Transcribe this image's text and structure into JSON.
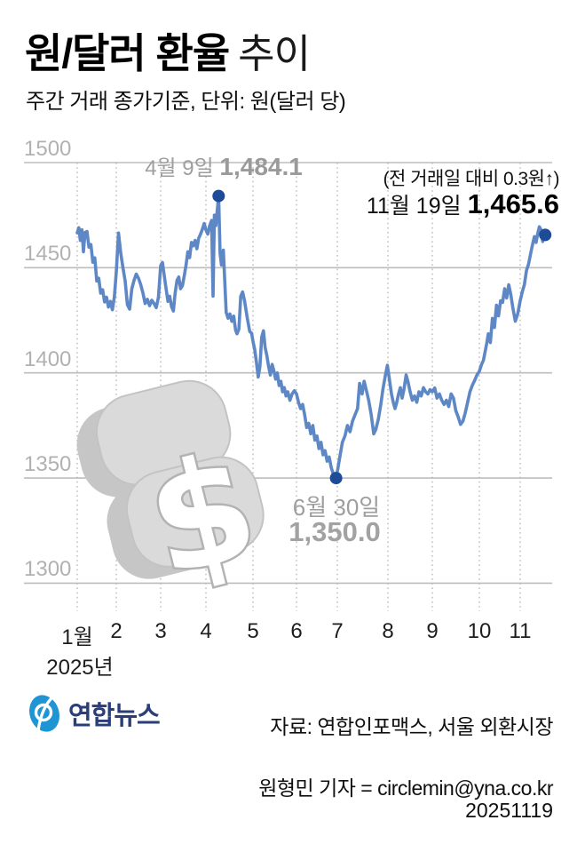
{
  "header": {
    "title_bold": "원/달러 환율",
    "title_light": "추이",
    "subtitle": "주간 거래 종가기준, 단위: 원(달러 당)"
  },
  "annotations": {
    "apr_label": "4월 9일 ",
    "apr_value": "1,484.1",
    "nov_note": "(전 거래일 대비 0.3원↑)",
    "nov_label": "11월 19일 ",
    "nov_value": "1,465.6",
    "jun_label": "6월 30일",
    "jun_value": "1,350.0"
  },
  "x_axis": {
    "month_labels": [
      "1월",
      "2",
      "3",
      "4",
      "5",
      "6",
      "7",
      "8",
      "9",
      "10",
      "11"
    ],
    "year_label": "2025년"
  },
  "y_axis": {
    "tick_labels": [
      "1500",
      "1450",
      "1400",
      "1350",
      "1300"
    ]
  },
  "footer": {
    "logo_text": "연합뉴스",
    "source": "자료: 연합인포맥스, 서울 외환시장",
    "byline": "원형민 기자 = circlemin@yna.co.kr",
    "date": "20251119"
  },
  "colors": {
    "line": "#5e87c6",
    "marker": "#1e4b97",
    "grid": "#bdbdbd",
    "month_grid": "#b5b5b5",
    "annotation_gray": "#9e9e9e",
    "text_black": "#111111",
    "axis_label_gray": "#b1b1b1",
    "logo_blue": "#2095d3",
    "logo_navy": "#2a3f77",
    "dollar_gray": "#dadada"
  },
  "chart_data": {
    "type": "line",
    "title": "원/달러 환율 추이",
    "subtitle": "주간 거래 종가기준, 단위: 원(달러 당)",
    "xlabel": "2025년 (월)",
    "ylabel": "원(달러 당)",
    "ylim": [
      1300,
      1500
    ],
    "y_ticks": [
      1500,
      1450,
      1400,
      1350,
      1300
    ],
    "x_tick_labels": [
      "1월",
      "2",
      "3",
      "4",
      "5",
      "6",
      "7",
      "8",
      "9",
      "10",
      "11"
    ],
    "grid": true,
    "legend_position": "none",
    "key_points": [
      {
        "date": "4월 9일",
        "month": 4.27,
        "value": 1484.1,
        "label": "1,484.1"
      },
      {
        "date": "6월 30일",
        "month": 6.97,
        "value": 1350.0,
        "label": "1,350.0"
      },
      {
        "date": "11월 19일",
        "month": 11.6,
        "value": 1465.6,
        "label": "1,465.6",
        "change_note": "(전 거래일 대비 0.3원↑)"
      }
    ],
    "series": [
      {
        "name": "원/달러 환율 (주간 거래 종가)",
        "points": [
          [
            1.0,
            1466.6
          ],
          [
            1.04,
            1469
          ],
          [
            1.08,
            1463
          ],
          [
            1.12,
            1468
          ],
          [
            1.16,
            1457.6
          ],
          [
            1.2,
            1466.8
          ],
          [
            1.25,
            1467.2
          ],
          [
            1.3,
            1459.8
          ],
          [
            1.35,
            1461
          ],
          [
            1.4,
            1452.6
          ],
          [
            1.45,
            1454.7
          ],
          [
            1.5,
            1443.7
          ],
          [
            1.55,
            1445
          ],
          [
            1.6,
            1437.9
          ],
          [
            1.65,
            1439.5
          ],
          [
            1.7,
            1433.7
          ],
          [
            1.75,
            1436
          ],
          [
            1.8,
            1431.3
          ],
          [
            1.85,
            1434
          ],
          [
            1.9,
            1430
          ],
          [
            1.95,
            1436
          ],
          [
            2.0,
            1448
          ],
          [
            2.05,
            1466.5
          ],
          [
            2.1,
            1457
          ],
          [
            2.15,
            1450
          ],
          [
            2.2,
            1443.7
          ],
          [
            2.25,
            1432.4
          ],
          [
            2.3,
            1430.3
          ],
          [
            2.35,
            1440
          ],
          [
            2.4,
            1444
          ],
          [
            2.45,
            1447
          ],
          [
            2.5,
            1445
          ],
          [
            2.55,
            1442
          ],
          [
            2.6,
            1438
          ],
          [
            2.65,
            1433
          ],
          [
            2.7,
            1435
          ],
          [
            2.75,
            1432
          ],
          [
            2.8,
            1434.5
          ],
          [
            2.85,
            1433
          ],
          [
            2.9,
            1431
          ],
          [
            2.95,
            1436
          ],
          [
            3.0,
            1451
          ],
          [
            3.04,
            1452.5
          ],
          [
            3.08,
            1446
          ],
          [
            3.12,
            1440
          ],
          [
            3.16,
            1434
          ],
          [
            3.2,
            1436.4
          ],
          [
            3.24,
            1431.5
          ],
          [
            3.28,
            1429.4
          ],
          [
            3.32,
            1438
          ],
          [
            3.36,
            1444
          ],
          [
            3.4,
            1445.6
          ],
          [
            3.44,
            1440
          ],
          [
            3.48,
            1441.5
          ],
          [
            3.52,
            1446
          ],
          [
            3.56,
            1451.3
          ],
          [
            3.6,
            1457.6
          ],
          [
            3.64,
            1454.8
          ],
          [
            3.68,
            1462
          ],
          [
            3.72,
            1460.4
          ],
          [
            3.76,
            1463
          ],
          [
            3.8,
            1459
          ],
          [
            3.84,
            1464
          ],
          [
            3.88,
            1466
          ],
          [
            3.92,
            1468.2
          ],
          [
            3.96,
            1471
          ],
          [
            4.0,
            1468
          ],
          [
            4.04,
            1466
          ],
          [
            4.08,
            1470
          ],
          [
            4.12,
            1472.5
          ],
          [
            4.15,
            1436.5
          ],
          [
            4.18,
            1475
          ],
          [
            4.21,
            1470
          ],
          [
            4.27,
            1484.1
          ],
          [
            4.3,
            1457
          ],
          [
            4.33,
            1451.3
          ],
          [
            4.37,
            1458.4
          ],
          [
            4.43,
            1428.8
          ],
          [
            4.47,
            1426
          ],
          [
            4.51,
            1428
          ],
          [
            4.55,
            1424.5
          ],
          [
            4.59,
            1427
          ],
          [
            4.63,
            1420.3
          ],
          [
            4.66,
            1418.6
          ],
          [
            4.7,
            1420.8
          ],
          [
            4.74,
            1436.4
          ],
          [
            4.78,
            1438.5
          ],
          [
            4.82,
            1434.3
          ],
          [
            4.88,
            1426
          ],
          [
            4.93,
            1419.7
          ],
          [
            4.97,
            1418.9
          ],
          [
            5.0,
            1415
          ],
          [
            5.04,
            1411
          ],
          [
            5.08,
            1405
          ],
          [
            5.12,
            1398
          ],
          [
            5.16,
            1403
          ],
          [
            5.2,
            1417
          ],
          [
            5.24,
            1420
          ],
          [
            5.28,
            1412
          ],
          [
            5.32,
            1408
          ],
          [
            5.36,
            1403
          ],
          [
            5.4,
            1399
          ],
          [
            5.44,
            1404
          ],
          [
            5.48,
            1401
          ],
          [
            5.52,
            1397
          ],
          [
            5.56,
            1400
          ],
          [
            5.6,
            1394
          ],
          [
            5.64,
            1396
          ],
          [
            5.68,
            1391
          ],
          [
            5.72,
            1393
          ],
          [
            5.76,
            1389
          ],
          [
            5.8,
            1391
          ],
          [
            5.85,
            1387
          ],
          [
            5.9,
            1390
          ],
          [
            5.95,
            1391.5
          ],
          [
            6.0,
            1390
          ],
          [
            6.05,
            1386
          ],
          [
            6.1,
            1383
          ],
          [
            6.15,
            1385
          ],
          [
            6.2,
            1380
          ],
          [
            6.25,
            1374
          ],
          [
            6.3,
            1376
          ],
          [
            6.35,
            1371
          ],
          [
            6.4,
            1375
          ],
          [
            6.45,
            1368
          ],
          [
            6.5,
            1370
          ],
          [
            6.55,
            1364
          ],
          [
            6.6,
            1367
          ],
          [
            6.65,
            1361
          ],
          [
            6.7,
            1363
          ],
          [
            6.75,
            1358
          ],
          [
            6.8,
            1360
          ],
          [
            6.85,
            1355
          ],
          [
            6.9,
            1352
          ],
          [
            6.95,
            1350.5
          ],
          [
            6.97,
            1350.0
          ],
          [
            7.0,
            1353
          ],
          [
            7.05,
            1360
          ],
          [
            7.1,
            1367
          ],
          [
            7.15,
            1370
          ],
          [
            7.2,
            1375
          ],
          [
            7.25,
            1372
          ],
          [
            7.3,
            1377
          ],
          [
            7.35,
            1380
          ],
          [
            7.4,
            1383
          ],
          [
            7.44,
            1395
          ],
          [
            7.49,
            1390
          ],
          [
            7.53,
            1396
          ],
          [
            7.58,
            1391
          ],
          [
            7.62,
            1387
          ],
          [
            7.67,
            1380
          ],
          [
            7.72,
            1371
          ],
          [
            7.76,
            1373
          ],
          [
            7.81,
            1378
          ],
          [
            7.86,
            1385
          ],
          [
            7.9,
            1392
          ],
          [
            7.95,
            1399
          ],
          [
            7.99,
            1403.6
          ],
          [
            8.04,
            1396
          ],
          [
            8.08,
            1390
          ],
          [
            8.12,
            1386
          ],
          [
            8.16,
            1383
          ],
          [
            8.2,
            1386
          ],
          [
            8.24,
            1390
          ],
          [
            8.28,
            1393
          ],
          [
            8.32,
            1388
          ],
          [
            8.36,
            1392
          ],
          [
            8.41,
            1399
          ],
          [
            8.45,
            1396
          ],
          [
            8.5,
            1391
          ],
          [
            8.55,
            1387
          ],
          [
            8.6,
            1389
          ],
          [
            8.65,
            1386
          ],
          [
            8.7,
            1391
          ],
          [
            8.75,
            1389
          ],
          [
            8.8,
            1393
          ],
          [
            8.85,
            1391
          ],
          [
            8.9,
            1390
          ],
          [
            8.95,
            1392
          ],
          [
            9.0,
            1391
          ],
          [
            9.05,
            1392.8
          ],
          [
            9.1,
            1388
          ],
          [
            9.15,
            1390
          ],
          [
            9.2,
            1387
          ],
          [
            9.25,
            1385
          ],
          [
            9.3,
            1387
          ],
          [
            9.35,
            1384
          ],
          [
            9.4,
            1390
          ],
          [
            9.45,
            1388
          ],
          [
            9.5,
            1382
          ],
          [
            9.55,
            1379
          ],
          [
            9.6,
            1375.5
          ],
          [
            9.65,
            1377
          ],
          [
            9.7,
            1381
          ],
          [
            9.75,
            1386
          ],
          [
            9.8,
            1391
          ],
          [
            9.85,
            1394
          ],
          [
            9.9,
            1396.4
          ],
          [
            9.95,
            1399
          ],
          [
            10.0,
            1400.7
          ],
          [
            10.05,
            1403.8
          ],
          [
            10.1,
            1406
          ],
          [
            10.18,
            1414
          ],
          [
            10.22,
            1418.6
          ],
          [
            10.27,
            1414.4
          ],
          [
            10.32,
            1425.9
          ],
          [
            10.37,
            1421.6
          ],
          [
            10.42,
            1432.2
          ],
          [
            10.47,
            1427.1
          ],
          [
            10.52,
            1434.3
          ],
          [
            10.57,
            1433.5
          ],
          [
            10.62,
            1440
          ],
          [
            10.67,
            1435.6
          ],
          [
            10.72,
            1441.9
          ],
          [
            10.77,
            1437.3
          ],
          [
            10.82,
            1431
          ],
          [
            10.88,
            1424.6
          ],
          [
            10.94,
            1428
          ],
          [
            11.0,
            1434.3
          ],
          [
            11.05,
            1438.6
          ],
          [
            11.1,
            1441.9
          ],
          [
            11.15,
            1448.7
          ],
          [
            11.2,
            1451.7
          ],
          [
            11.25,
            1456.8
          ],
          [
            11.3,
            1461.4
          ],
          [
            11.34,
            1464.8
          ],
          [
            11.38,
            1462
          ],
          [
            11.42,
            1466.1
          ],
          [
            11.46,
            1469.5
          ],
          [
            11.5,
            1468
          ],
          [
            11.54,
            1462.5
          ],
          [
            11.57,
            1465.3
          ],
          [
            11.6,
            1465.6
          ]
        ]
      }
    ]
  }
}
